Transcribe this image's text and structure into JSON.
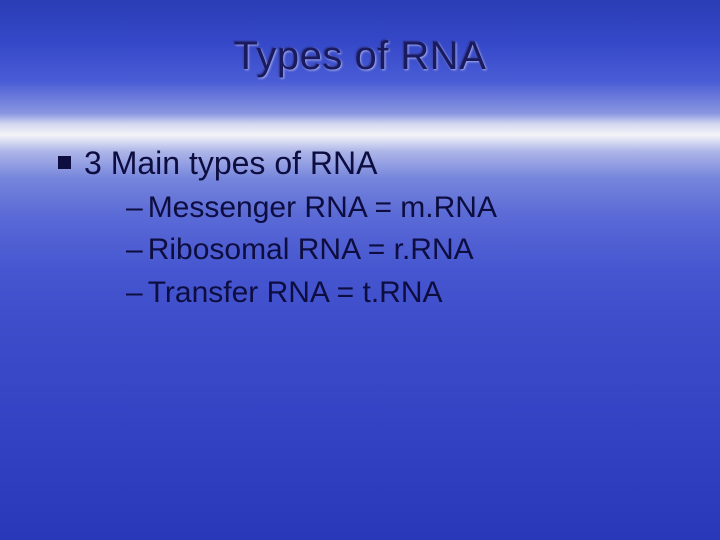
{
  "slide": {
    "title": "Types of RNA",
    "title_color": "#1a1a60",
    "title_fontsize": 40,
    "body_color": "#0d0d40",
    "body_fontsize": 32,
    "sub_fontsize": 30,
    "background_gradient": [
      "#2a3db5",
      "#3548c8",
      "#4a5cd5",
      "#8a96e0",
      "#d5d9f0",
      "#f4f4f8",
      "#aeb6e8",
      "#7685dc",
      "#5a6ad6",
      "#4656d0",
      "#3a4ac8",
      "#3242c2",
      "#2838b8"
    ],
    "main_bullet": {
      "text": "3 Main types of RNA",
      "marker_shape": "square",
      "marker_color": "#0d0d40"
    },
    "sub_bullets": [
      {
        "marker": "–",
        "text": "Messenger RNA = m.RNA"
      },
      {
        "marker": "–",
        "text": "Ribosomal RNA = r.RNA"
      },
      {
        "marker": "–",
        "text": "Transfer RNA = t.RNA"
      }
    ]
  }
}
